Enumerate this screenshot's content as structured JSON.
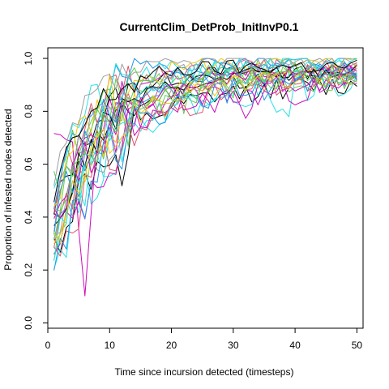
{
  "chart_data": {
    "type": "line",
    "title": "CurrentClim_DetProb_InitInvP0.1",
    "xlabel": "Time since incursion detected (timesteps)",
    "ylabel": "Proportion of infested nodes detected",
    "xlim": [
      0,
      51
    ],
    "ylim": [
      -0.02,
      1.04
    ],
    "xticks": [
      0,
      10,
      20,
      30,
      40,
      50
    ],
    "yticks": [
      0.0,
      0.2,
      0.4,
      0.6,
      0.8,
      1.0
    ],
    "xtick_labels": [
      "0",
      "10",
      "20",
      "30",
      "40",
      "50"
    ],
    "ytick_labels": [
      "0.0",
      "0.2",
      "0.4",
      "0.6",
      "0.8",
      "1.0"
    ],
    "grid": false,
    "series": [
      {
        "color": "#000000",
        "params": {
          "y1": 0.36,
          "y50": 0.93,
          "k": 0.12,
          "amp": 0.03,
          "seed": 11
        }
      },
      {
        "color": "#000000",
        "params": {
          "y1": 0.28,
          "y50": 0.9,
          "k": 0.1,
          "amp": 0.04,
          "seed": 12,
          "dipAt": 12,
          "dip": 0.18
        }
      },
      {
        "color": "#000000",
        "params": {
          "y1": 0.4,
          "y50": 0.95,
          "k": 0.16,
          "amp": 0.03,
          "seed": 13
        }
      },
      {
        "color": "#df536b",
        "params": {
          "y1": 0.3,
          "y50": 0.94,
          "k": 0.13,
          "amp": 0.04,
          "seed": 14
        }
      },
      {
        "color": "#df536b",
        "params": {
          "y1": 0.45,
          "y50": 0.97,
          "k": 0.18,
          "amp": 0.03,
          "seed": 15
        }
      },
      {
        "color": "#61d04f",
        "params": {
          "y1": 0.33,
          "y50": 0.92,
          "k": 0.11,
          "amp": 0.05,
          "seed": 16
        }
      },
      {
        "color": "#61d04f",
        "params": {
          "y1": 0.5,
          "y50": 0.96,
          "k": 0.14,
          "amp": 0.04,
          "seed": 17,
          "dipAt": 22,
          "dip": 0.12
        }
      },
      {
        "color": "#2297e6",
        "params": {
          "y1": 0.27,
          "y50": 0.95,
          "k": 0.12,
          "amp": 0.04,
          "seed": 18
        }
      },
      {
        "color": "#2297e6",
        "params": {
          "y1": 0.42,
          "y50": 0.99,
          "k": 0.2,
          "amp": 0.03,
          "seed": 19
        }
      },
      {
        "color": "#28e2e5",
        "params": {
          "y1": 0.22,
          "y50": 0.93,
          "k": 0.1,
          "amp": 0.05,
          "seed": 20
        }
      },
      {
        "color": "#28e2e5",
        "params": {
          "y1": 0.55,
          "y50": 0.97,
          "k": 0.17,
          "amp": 0.04,
          "seed": 21
        }
      },
      {
        "color": "#28e2e5",
        "params": {
          "y1": 0.35,
          "y50": 0.9,
          "k": 0.09,
          "amp": 0.05,
          "seed": 22,
          "dipAt": 38,
          "dip": 0.1
        }
      },
      {
        "color": "#cd0bbc",
        "params": {
          "y1": 0.62,
          "y50": 0.9,
          "k": 0.06,
          "amp": 0.05,
          "seed": 23,
          "dipAt": 6,
          "dip": 0.6
        }
      },
      {
        "color": "#cd0bbc",
        "params": {
          "y1": 0.2,
          "y50": 0.93,
          "k": 0.1,
          "amp": 0.05,
          "seed": 24,
          "dipAt": 32,
          "dip": 0.12
        }
      },
      {
        "color": "#cd0bbc",
        "params": {
          "y1": 0.38,
          "y50": 0.96,
          "k": 0.15,
          "amp": 0.03,
          "seed": 25
        }
      },
      {
        "color": "#f5c710",
        "params": {
          "y1": 0.31,
          "y50": 0.95,
          "k": 0.12,
          "amp": 0.04,
          "seed": 26,
          "dipAt": 19,
          "dip": 0.1
        }
      },
      {
        "color": "#f5c710",
        "params": {
          "y1": 0.48,
          "y50": 0.98,
          "k": 0.16,
          "amp": 0.04,
          "seed": 27
        }
      },
      {
        "color": "#9e9e9e",
        "params": {
          "y1": 0.41,
          "y50": 0.97,
          "k": 0.14,
          "amp": 0.04,
          "seed": 28
        }
      },
      {
        "color": "#9e9e9e",
        "params": {
          "y1": 0.25,
          "y50": 0.94,
          "k": 0.11,
          "amp": 0.04,
          "seed": 29
        }
      },
      {
        "color": "#000000",
        "params": {
          "y1": 0.33,
          "y50": 0.95,
          "k": 0.13,
          "amp": 0.03,
          "seed": 30
        }
      },
      {
        "color": "#df536b",
        "params": {
          "y1": 0.26,
          "y50": 0.92,
          "k": 0.09,
          "amp": 0.05,
          "seed": 31
        }
      },
      {
        "color": "#61d04f",
        "params": {
          "y1": 0.44,
          "y50": 0.95,
          "k": 0.15,
          "amp": 0.04,
          "seed": 32
        }
      },
      {
        "color": "#2297e6",
        "params": {
          "y1": 0.37,
          "y50": 0.96,
          "k": 0.14,
          "amp": 0.04,
          "seed": 33
        }
      },
      {
        "color": "#28e2e5",
        "params": {
          "y1": 0.3,
          "y50": 0.98,
          "k": 0.13,
          "amp": 0.04,
          "seed": 34
        }
      },
      {
        "color": "#cd0bbc",
        "params": {
          "y1": 0.35,
          "y50": 0.94,
          "k": 0.12,
          "amp": 0.04,
          "seed": 35
        }
      },
      {
        "color": "#f5c710",
        "params": {
          "y1": 0.29,
          "y50": 0.93,
          "k": 0.11,
          "amp": 0.04,
          "seed": 36
        }
      },
      {
        "color": "#9e9e9e",
        "params": {
          "y1": 0.5,
          "y50": 0.99,
          "k": 0.19,
          "amp": 0.03,
          "seed": 37
        }
      },
      {
        "color": "#000000",
        "params": {
          "y1": 0.46,
          "y50": 0.97,
          "k": 0.17,
          "amp": 0.03,
          "seed": 38
        }
      },
      {
        "color": "#2297e6",
        "params": {
          "y1": 0.24,
          "y50": 0.91,
          "k": 0.1,
          "amp": 0.05,
          "seed": 39
        }
      },
      {
        "color": "#61d04f",
        "params": {
          "y1": 0.39,
          "y50": 0.93,
          "k": 0.12,
          "amp": 0.05,
          "seed": 40
        }
      }
    ]
  }
}
